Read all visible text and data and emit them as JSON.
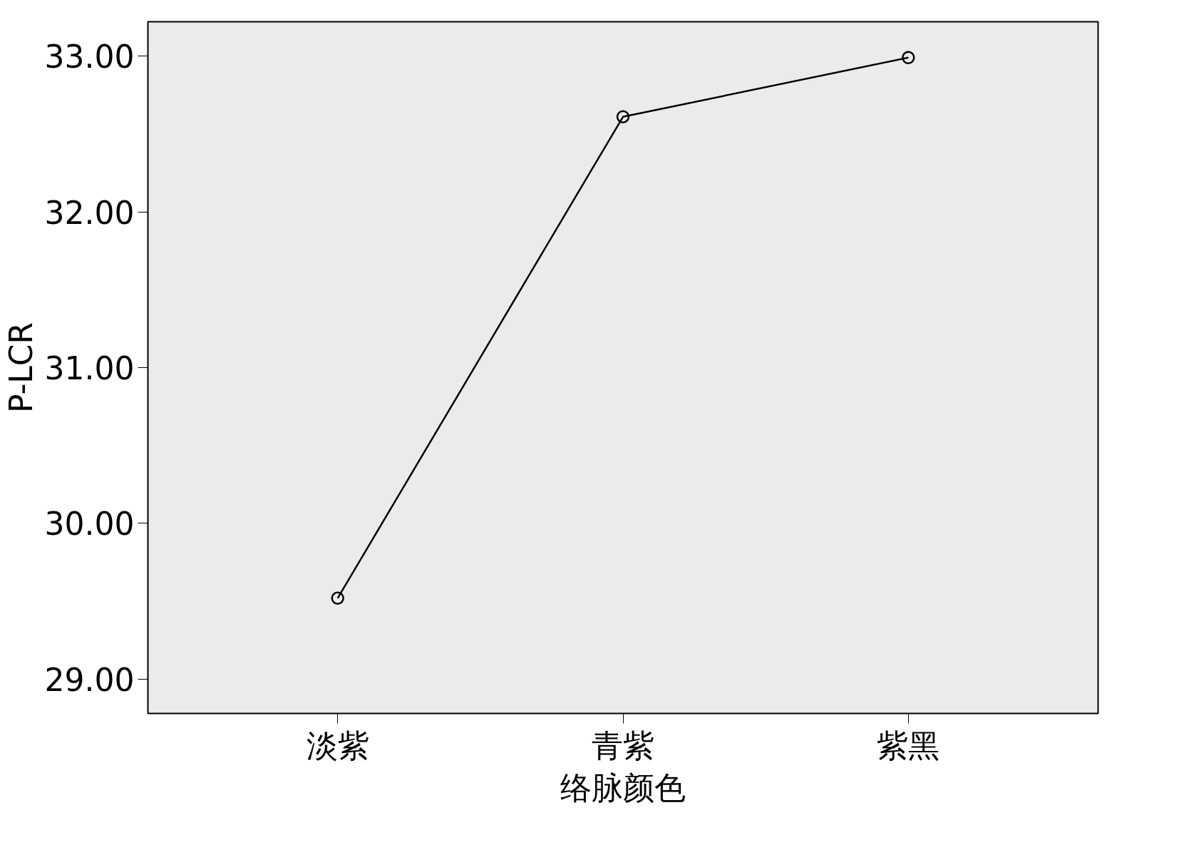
{
  "chart_data": {
    "type": "line",
    "xlabel": "络脉颜色",
    "ylabel": "P-LCR",
    "categories": [
      "淡紫",
      "青紫",
      "紫黑"
    ],
    "series": [
      {
        "color": "#000000",
        "values": [
          29.52,
          32.61,
          32.99
        ]
      }
    ],
    "ylim": [
      28.78,
      33.22
    ],
    "yticks": [
      {
        "value": 29,
        "label": "29.00"
      },
      {
        "value": 30,
        "label": "30.00"
      },
      {
        "value": 31,
        "label": "31.00"
      },
      {
        "value": 32,
        "label": "32.00"
      },
      {
        "value": 33,
        "label": "33.00"
      }
    ],
    "marker": "circle",
    "line_style": "solid"
  }
}
